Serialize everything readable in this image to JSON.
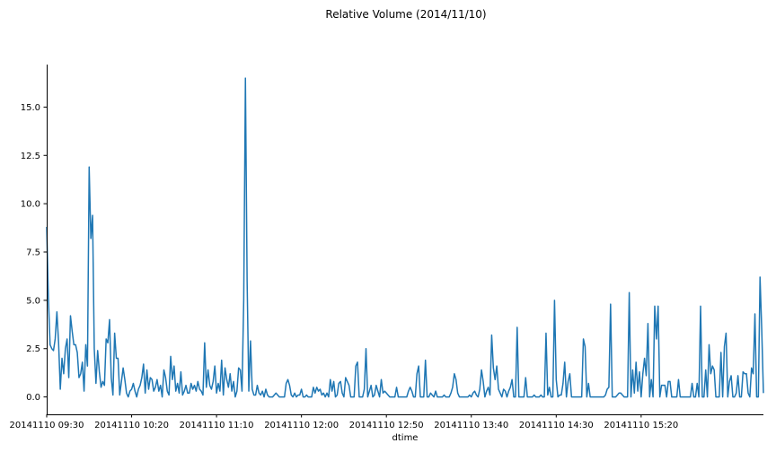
{
  "chart_data": {
    "type": "line",
    "title": "Relative Volume (2014/11/10)",
    "xlabel": "dtime",
    "ylabel": "",
    "x_tick_labels": [
      "20141110 09:30",
      "20141110 10:20",
      "20141110 11:10",
      "20141110 12:00",
      "20141110 12:50",
      "20141110 13:40",
      "20141110 14:30",
      "20141110 15:20"
    ],
    "y_tick_labels": [
      "0.0",
      "2.5",
      "5.0",
      "7.5",
      "10.0",
      "12.5",
      "15.0"
    ],
    "y_ticks": [
      0.0,
      2.5,
      5.0,
      7.5,
      10.0,
      12.5,
      15.0
    ],
    "ylim": [
      -0.9,
      17.2
    ],
    "grid": false,
    "series": [
      {
        "color": "#1f77b4",
        "x_start": "20141110 09:30",
        "x_step_minutes": 1,
        "values": [
          8.8,
          5.1,
          2.7,
          2.5,
          2.4,
          3.0,
          4.4,
          2.8,
          0.4,
          2.0,
          1.2,
          2.5,
          3.0,
          1.0,
          4.2,
          3.4,
          2.7,
          2.7,
          2.3,
          1.0,
          1.2,
          1.8,
          0.3,
          2.7,
          1.6,
          11.9,
          8.2,
          9.4,
          2.5,
          0.7,
          2.4,
          1.3,
          0.5,
          0.8,
          0.6,
          3.0,
          2.8,
          4.0,
          1.0,
          0.1,
          3.3,
          2.0,
          2.0,
          0.1,
          0.8,
          1.5,
          0.9,
          0.2,
          0.0,
          0.3,
          0.4,
          0.7,
          0.3,
          0.0,
          0.4,
          0.6,
          1.0,
          1.7,
          0.2,
          1.4,
          0.4,
          1.0,
          0.9,
          0.3,
          0.5,
          0.9,
          0.3,
          0.6,
          0.0,
          1.4,
          1.0,
          0.3,
          0.1,
          2.1,
          0.9,
          1.6,
          0.3,
          0.7,
          0.2,
          1.3,
          0.1,
          0.3,
          0.6,
          0.2,
          0.2,
          0.7,
          0.4,
          0.6,
          0.3,
          0.8,
          0.4,
          0.3,
          0.1,
          2.8,
          0.5,
          1.4,
          0.6,
          0.4,
          0.8,
          1.6,
          0.2,
          0.7,
          0.3,
          1.9,
          0.1,
          1.5,
          0.9,
          0.5,
          1.2,
          0.3,
          0.8,
          0.0,
          0.3,
          1.5,
          1.4,
          0.3,
          5.0,
          16.5,
          6.0,
          0.3,
          2.9,
          0.4,
          0.1,
          0.1,
          0.6,
          0.2,
          0.1,
          0.3,
          0.0,
          0.4,
          0.1,
          0.0,
          0.0,
          0.0,
          0.1,
          0.2,
          0.1,
          0.0,
          0.0,
          0.0,
          0.0,
          0.7,
          0.9,
          0.6,
          0.1,
          0.0,
          0.2,
          0.0,
          0.1,
          0.1,
          0.4,
          0.0,
          0.0,
          0.1,
          0.0,
          0.0,
          0.0,
          0.5,
          0.2,
          0.5,
          0.3,
          0.4,
          0.1,
          0.2,
          0.0,
          0.2,
          0.0,
          0.9,
          0.3,
          0.8,
          0.0,
          0.1,
          0.7,
          0.8,
          0.2,
          0.0,
          1.0,
          0.8,
          0.6,
          0.0,
          0.0,
          0.0,
          1.6,
          1.8,
          0.0,
          0.0,
          0.0,
          0.4,
          2.5,
          0.0,
          0.3,
          0.6,
          0.0,
          0.1,
          0.6,
          0.3,
          0.0,
          0.9,
          0.2,
          0.3,
          0.2,
          0.1,
          0.0,
          0.0,
          0.0,
          0.0,
          0.5,
          0.0,
          0.0,
          0.0,
          0.0,
          0.0,
          0.0,
          0.3,
          0.5,
          0.3,
          0.0,
          0.0,
          1.2,
          1.6,
          0.0,
          0.0,
          0.0,
          1.9,
          0.0,
          0.0,
          0.2,
          0.1,
          0.0,
          0.3,
          0.0,
          0.0,
          0.0,
          0.0,
          0.1,
          0.0,
          0.0,
          0.0,
          0.2,
          0.5,
          1.2,
          0.9,
          0.2,
          0.0,
          0.0,
          0.0,
          0.0,
          0.0,
          0.0,
          0.1,
          0.0,
          0.2,
          0.3,
          0.1,
          0.0,
          0.4,
          1.4,
          0.8,
          0.0,
          0.3,
          0.5,
          0.1,
          3.2,
          1.5,
          0.9,
          1.6,
          0.4,
          0.2,
          0.0,
          0.4,
          0.3,
          0.0,
          0.3,
          0.5,
          0.9,
          0.0,
          0.0,
          3.6,
          0.0,
          0.0,
          0.0,
          0.0,
          1.0,
          0.0,
          0.0,
          0.0,
          0.0,
          0.1,
          0.0,
          0.0,
          0.0,
          0.1,
          0.0,
          0.0,
          3.3,
          0.1,
          0.5,
          0.0,
          0.0,
          5.0,
          0.9,
          0.0,
          0.1,
          0.1,
          0.7,
          1.8,
          0.0,
          0.8,
          1.2,
          0.0,
          0.0,
          0.0,
          0.0,
          0.0,
          0.0,
          0.0,
          3.0,
          2.6,
          0.0,
          0.7,
          0.0,
          0.0,
          0.0,
          0.0,
          0.0,
          0.0,
          0.0,
          0.0,
          0.0,
          0.1,
          0.4,
          0.5,
          4.8,
          0.0,
          0.0,
          0.0,
          0.1,
          0.2,
          0.2,
          0.1,
          0.0,
          0.0,
          0.0,
          5.4,
          0.0,
          1.4,
          0.2,
          1.8,
          0.3,
          1.3,
          0.0,
          1.2,
          2.0,
          1.1,
          3.8,
          0.0,
          0.9,
          0.0,
          4.7,
          3.0,
          4.7,
          0.0,
          0.6,
          0.6,
          0.6,
          0.0,
          0.8,
          0.8,
          0.0,
          0.0,
          0.0,
          0.0,
          0.9,
          0.0,
          0.0,
          0.0,
          0.0,
          0.0,
          0.0,
          0.0,
          0.7,
          0.0,
          0.0,
          0.7,
          0.0,
          4.7,
          0.0,
          0.0,
          1.4,
          0.0,
          2.7,
          1.2,
          1.6,
          1.4,
          0.0,
          0.0,
          0.0,
          2.3,
          0.0,
          2.6,
          3.3,
          0.0,
          0.8,
          1.1,
          0.0,
          0.0,
          0.2,
          1.1,
          0.0,
          0.0,
          1.3,
          1.2,
          1.2,
          0.2,
          0.0,
          1.5,
          1.2,
          4.3,
          0.0,
          0.0,
          6.2,
          3.5,
          0.2
        ]
      }
    ]
  }
}
